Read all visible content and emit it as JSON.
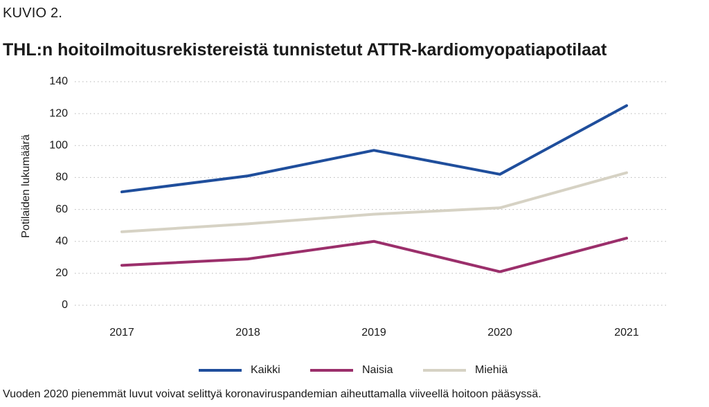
{
  "kicker": "KUVIO 2.",
  "footnote": "Vuoden 2020 pienemmät luvut voivat selittyä koronaviruspandemian aiheuttamalla viiveellä hoitoon pääsyssä.",
  "chart_data": {
    "type": "line",
    "title": "THL:n hoitoilmoitusrekistereistä tunnistetut ATTR-kardiomyopatiapotilaat",
    "xlabel": "",
    "ylabel": "Potilaiden lukumäärä",
    "categories": [
      "2017",
      "2018",
      "2019",
      "2020",
      "2021"
    ],
    "ylim": [
      0,
      140
    ],
    "yticks": [
      "0",
      "20",
      "40",
      "60",
      "80",
      "100",
      "120",
      "140"
    ],
    "grid": "horizontal dotted",
    "legend_position": "bottom",
    "series": [
      {
        "name": "Kaikki",
        "color": "#1f4e9c",
        "values": [
          71,
          81,
          97,
          82,
          125
        ]
      },
      {
        "name": "Naisia",
        "color": "#9b2f6b",
        "values": [
          25,
          29,
          40,
          21,
          42
        ]
      },
      {
        "name": "Miehiä",
        "color": "#d6d2c4",
        "values": [
          46,
          51,
          57,
          61,
          83
        ]
      }
    ]
  }
}
